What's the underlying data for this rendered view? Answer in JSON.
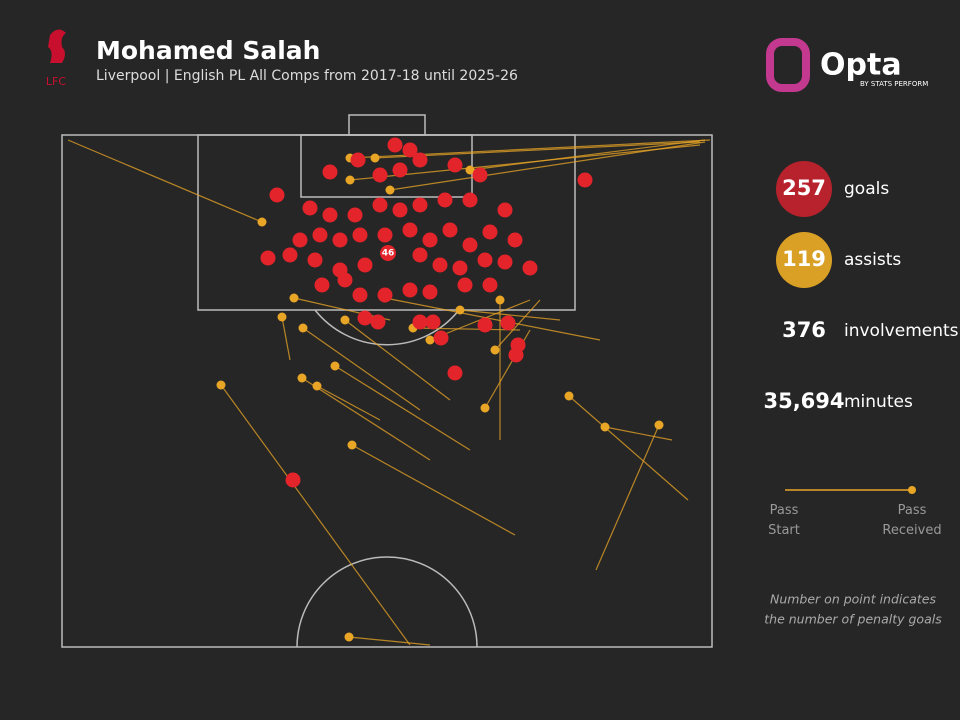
{
  "chart_data": {
    "type": "scatter",
    "title": "Mohamed Salah",
    "subtitle": "Liverpool | English PL All Comps from 2017-18 until 2025-26",
    "club": "LFC",
    "brand": "Opta",
    "brand_sub": "BY STATS PERFORM",
    "xlim": [
      0,
      650
    ],
    "ylim": [
      0,
      512
    ],
    "series": [
      {
        "name": "goals",
        "color": "#e3242b",
        "x": [
          333,
          348,
          296,
          268,
          318,
          338,
          358,
          393,
          418,
          523,
          215,
          248,
          268,
          293,
          318,
          338,
          358,
          383,
          408,
          443,
          238,
          258,
          278,
          298,
          323,
          348,
          368,
          388,
          408,
          428,
          453,
          206,
          228,
          253,
          278,
          303,
          358,
          378,
          398,
          423,
          443,
          468,
          260,
          283,
          298,
          323,
          348,
          368,
          403,
          428,
          303,
          316,
          358,
          371,
          379,
          423,
          446,
          456,
          454,
          393,
          231
        ],
        "y": [
          10,
          15,
          25,
          37,
          40,
          35,
          25,
          30,
          40,
          45,
          60,
          73,
          80,
          80,
          70,
          75,
          70,
          65,
          65,
          75,
          105,
          100,
          105,
          100,
          100,
          95,
          105,
          95,
          110,
          97,
          105,
          123,
          120,
          125,
          135,
          130,
          120,
          130,
          133,
          125,
          127,
          133,
          150,
          145,
          160,
          160,
          155,
          157,
          150,
          150,
          183,
          187,
          187,
          187,
          203,
          190,
          188,
          210,
          220,
          238,
          345
        ]
      },
      {
        "name": "assists",
        "color": "#e9a526",
        "x": [
          159,
          287,
          290,
          543,
          597,
          507,
          423,
          240,
          273,
          220,
          241,
          232,
          200,
          288,
          313,
          368,
          433,
          351,
          283,
          398,
          323,
          288,
          328,
          408,
          438,
          255
        ],
        "y": [
          250,
          502,
          310,
          292,
          290,
          261,
          273,
          243,
          231,
          182,
          193,
          163,
          87,
          23,
          23,
          205,
          215,
          193,
          185,
          175,
          163,
          45,
          55,
          35,
          165,
          251
        ],
        "x_start": [
          348,
          368,
          453,
          610,
          534,
          626,
          468,
          368,
          408,
          228,
          358,
          328,
          6,
          648,
          638,
          468,
          478,
          458,
          388,
          498,
          538,
          638,
          643,
          643,
          438,
          318
        ],
        "y_start": [
          510,
          510,
          400,
          305,
          435,
          365,
          195,
          325,
          315,
          225,
          275,
          185,
          5,
          5,
          7,
          165,
          165,
          195,
          265,
          185,
          205,
          10,
          7,
          5,
          305,
          285
        ]
      }
    ],
    "penalty": {
      "x": 326,
      "y": 118,
      "value": 46
    },
    "stats": [
      {
        "value": 257,
        "label": "goals",
        "color": "#b8222c"
      },
      {
        "value": 119,
        "label": "assists",
        "color": "#d9a025"
      },
      {
        "value": 376,
        "label": "involvements"
      },
      {
        "value": {
          "value": 35694,
          "label": "35,694"
        },
        "label": "minutes"
      }
    ],
    "legend": {
      "start": "Pass\nStart",
      "end": "Pass\nReceived"
    },
    "note": [
      "Number on point indicates",
      "the number of penalty goals"
    ]
  }
}
